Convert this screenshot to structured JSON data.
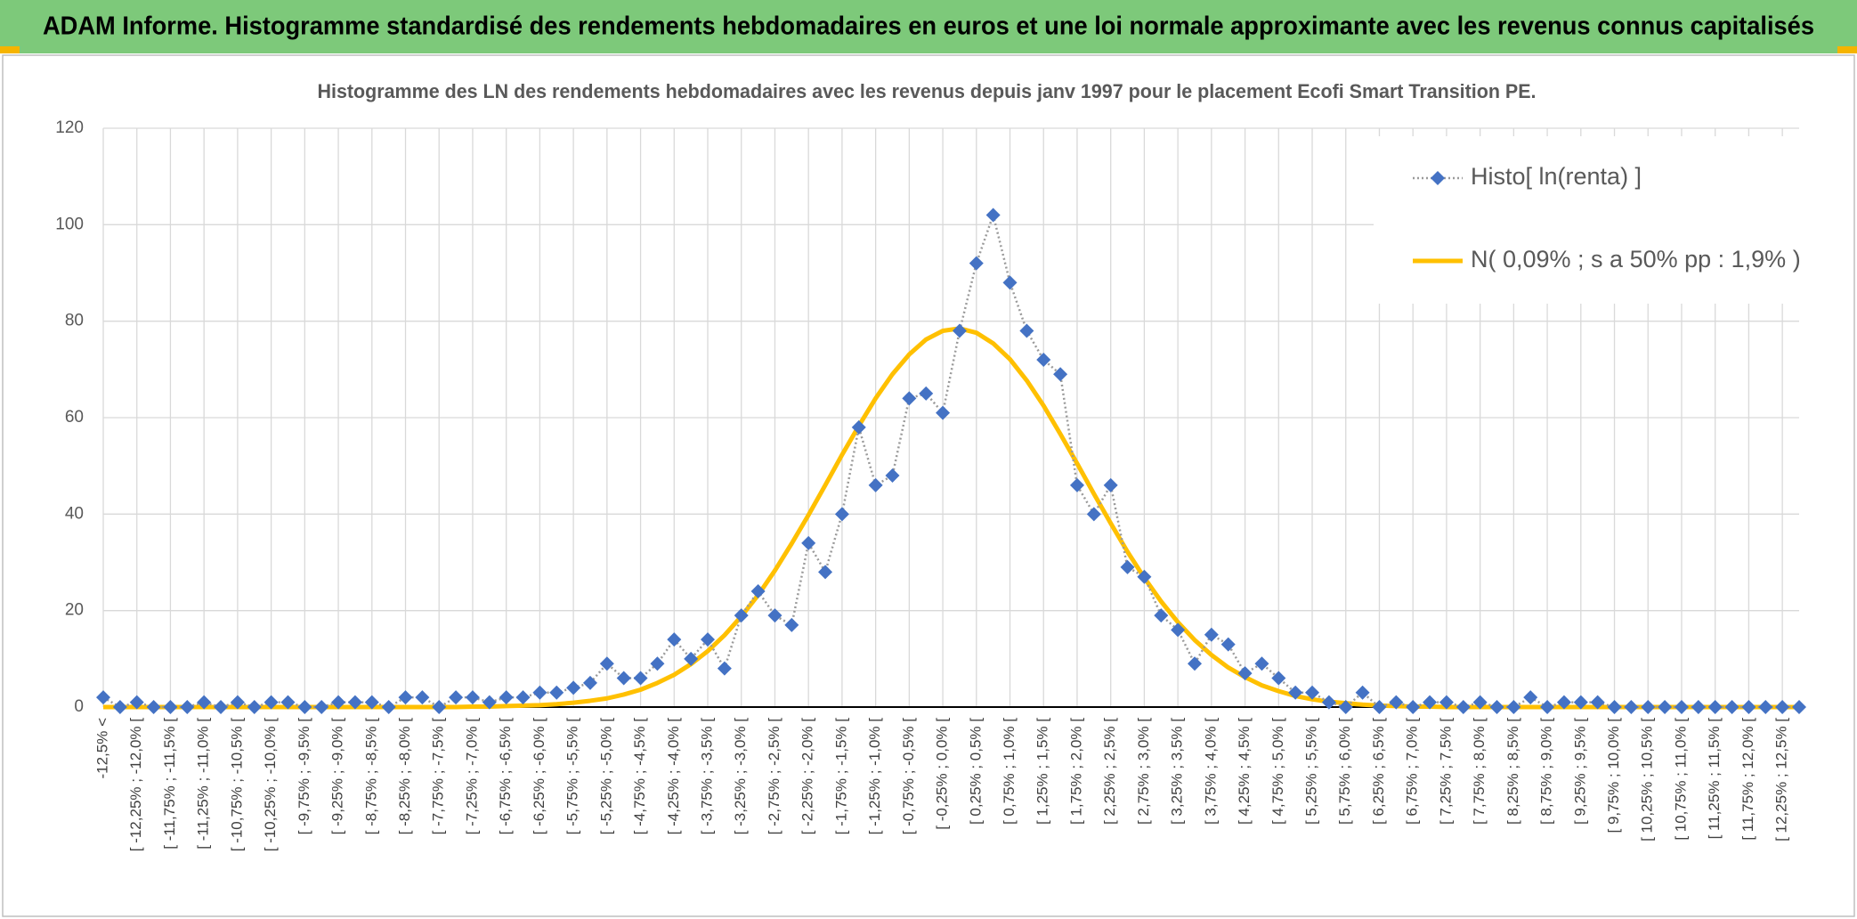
{
  "banner": {
    "title": "ADAM Informe. Histogramme standardisé des rendements hebdomadaires en euros et une loi normale approximante avec les revenus connus capitalisés"
  },
  "chart_data": {
    "type": "line",
    "title": "Histogramme des LN des rendements hebdomadaires avec les revenus depuis janv 1997 pour le placement Ecofi Smart Transition PE.",
    "categories": [
      "-12,5% <",
      null,
      "[ -12,25% ; -12,0% [",
      null,
      "[ -11,75% ; -11,5% [",
      null,
      "[ -11,25% ; -11,0% [",
      null,
      "[ -10,75% ; -10,5% [",
      null,
      "[ -10,25% ; -10,0% [",
      null,
      "[ -9,75% ; -9,5% [",
      null,
      "[ -9,25% ; -9,0% [",
      null,
      "[ -8,75% ; -8,5% [",
      null,
      "[ -8,25% ; -8,0% [",
      null,
      "[ -7,75% ; -7,5% [",
      null,
      "[ -7,25% ; -7,0% [",
      null,
      "[ -6,75% ; -6,5% [",
      null,
      "[ -6,25% ; -6,0% [",
      null,
      "[ -5,75% ; -5,5% [",
      null,
      "[ -5,25% ; -5,0% [",
      null,
      "[ -4,75% ; -4,5% [",
      null,
      "[ -4,25% ; -4,0% [",
      null,
      "[ -3,75% ; -3,5% [",
      null,
      "[ -3,25% ; -3,0% [",
      null,
      "[ -2,75% ; -2,5% [",
      null,
      "[ -2,25% ; -2,0% [",
      null,
      "[ -1,75% ; -1,5% [",
      null,
      "[ -1,25% ; -1,0% [",
      null,
      "[ -0,75% ; -0,5% [",
      null,
      "[ -0,25% ; 0,0% [",
      null,
      "[ 0,25% ; 0,5% [",
      null,
      "[ 0,75% ; 1,0% [",
      null,
      "[ 1,25% ; 1,5% [",
      null,
      "[ 1,75% ; 2,0% [",
      null,
      "[ 2,25% ; 2,5% [",
      null,
      "[ 2,75% ; 3,0% [",
      null,
      "[ 3,25% ; 3,5% [",
      null,
      "[ 3,75% ; 4,0% [",
      null,
      "[ 4,25% ; 4,5% [",
      null,
      "[ 4,75% ; 5,0% [",
      null,
      "[ 5,25% ; 5,5% [",
      null,
      "[ 5,75% ; 6,0% [",
      null,
      "[ 6,25% ; 6,5% [",
      null,
      "[ 6,75% ; 7,0% [",
      null,
      "[ 7,25% ; 7,5% [",
      null,
      "[ 7,75% ; 8,0% [",
      null,
      "[ 8,25% ; 8,5% [",
      null,
      "[ 8,75% ; 9,0% [",
      null,
      "[ 9,25% ; 9,5% [",
      null,
      "[ 9,75% ; 10,0% [",
      null,
      "[ 10,25% ; 10,5% [",
      null,
      "[ 10,75% ; 11,0% [",
      null,
      "[ 11,25% ; 11,5% [",
      null,
      "[ 11,75% ; 12,0% [",
      null,
      "[ 12,25% ; 12,5% [",
      null
    ],
    "series": [
      {
        "name": "Histo[ ln(renta) ]",
        "color": "#4472c4",
        "marker": "diamond",
        "values": [
          2,
          0,
          1,
          0,
          0,
          0,
          1,
          0,
          1,
          0,
          1,
          1,
          0,
          0,
          1,
          1,
          1,
          0,
          2,
          2,
          0,
          2,
          2,
          1,
          2,
          2,
          3,
          3,
          4,
          5,
          9,
          6,
          6,
          9,
          14,
          10,
          14,
          8,
          19,
          24,
          19,
          17,
          34,
          28,
          40,
          58,
          46,
          48,
          64,
          65,
          61,
          78,
          92,
          102,
          88,
          78,
          72,
          69,
          46,
          40,
          46,
          29,
          27,
          19,
          16,
          9,
          15,
          13,
          7,
          9,
          6,
          3,
          3,
          1,
          0,
          3,
          0,
          1,
          0,
          1,
          1,
          0,
          1,
          0,
          0,
          2,
          0,
          1,
          1,
          1,
          0,
          0,
          0,
          0,
          0,
          0,
          0,
          0,
          0,
          0,
          0,
          0
        ]
      },
      {
        "name": "N( 0,09% ; s a 50% pp : 1,9% )",
        "color": "#ffc000",
        "values": [
          0,
          0,
          0,
          0,
          0,
          0,
          0,
          0,
          0,
          0,
          0,
          0,
          0,
          0,
          0,
          0,
          0,
          0,
          0,
          0,
          0,
          0,
          0.1,
          0.1,
          0.2,
          0.3,
          0.4,
          0.6,
          0.9,
          1.3,
          1.8,
          2.6,
          3.6,
          5.0,
          6.7,
          8.9,
          11.6,
          14.9,
          18.8,
          23.2,
          28.3,
          33.9,
          39.8,
          46.0,
          52.3,
          58.3,
          64.0,
          69.0,
          73.1,
          76.2,
          78.0,
          78.5,
          77.6,
          75.4,
          72.1,
          67.7,
          62.5,
          56.6,
          50.5,
          44.2,
          38.1,
          32.2,
          26.8,
          21.9,
          17.6,
          13.9,
          10.8,
          8.2,
          6.2,
          4.5,
          3.3,
          2.3,
          1.6,
          1.1,
          0.8,
          0.5,
          0.3,
          0.2,
          0.1,
          0.1,
          0,
          0,
          0,
          0,
          0,
          0,
          0,
          0,
          0,
          0,
          0,
          0,
          0,
          0,
          0,
          0,
          0,
          0,
          0,
          0,
          0,
          0
        ]
      }
    ],
    "ylim": [
      0,
      120
    ],
    "yticks": [
      0,
      20,
      40,
      60,
      80,
      100,
      120
    ],
    "grid": true,
    "legend": "top-right"
  }
}
